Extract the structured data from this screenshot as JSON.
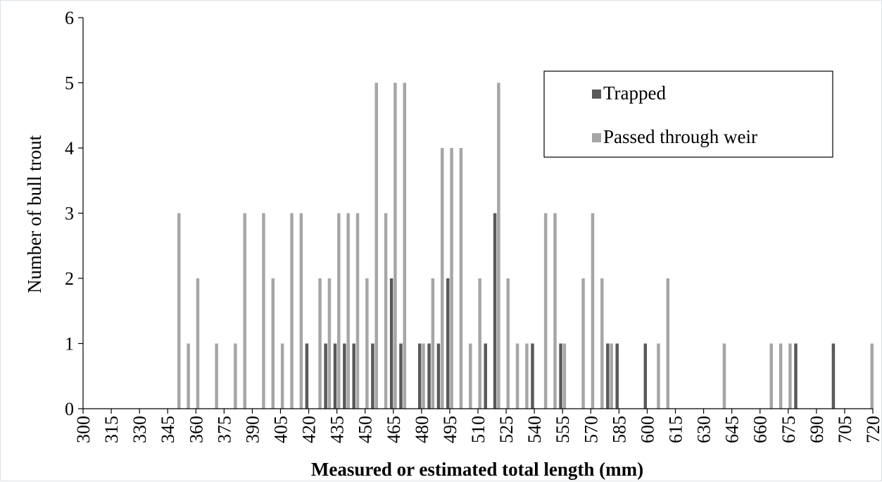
{
  "chart_data": {
    "type": "bar",
    "xlabel": "Measured or estimated total length (mm)",
    "ylabel": "Number of bull trout",
    "ylim": [
      0,
      6
    ],
    "yticks": [
      0,
      1,
      2,
      3,
      4,
      5,
      6
    ],
    "xlim": [
      300,
      720
    ],
    "xticks": [
      300,
      315,
      330,
      345,
      360,
      375,
      390,
      405,
      420,
      435,
      450,
      465,
      480,
      495,
      510,
      525,
      540,
      555,
      570,
      585,
      600,
      615,
      630,
      645,
      660,
      675,
      690,
      705,
      720
    ],
    "legend_placement": "top-right",
    "grid": false,
    "series": [
      {
        "name": "Trapped",
        "color": "#595959",
        "points": [
          {
            "x": 420,
            "y": 1
          },
          {
            "x": 430,
            "y": 1
          },
          {
            "x": 435,
            "y": 1
          },
          {
            "x": 440,
            "y": 1
          },
          {
            "x": 445,
            "y": 1
          },
          {
            "x": 455,
            "y": 1
          },
          {
            "x": 465,
            "y": 2
          },
          {
            "x": 470,
            "y": 1
          },
          {
            "x": 480,
            "y": 1
          },
          {
            "x": 485,
            "y": 1
          },
          {
            "x": 490,
            "y": 1
          },
          {
            "x": 495,
            "y": 2
          },
          {
            "x": 515,
            "y": 1
          },
          {
            "x": 520,
            "y": 3
          },
          {
            "x": 540,
            "y": 1
          },
          {
            "x": 555,
            "y": 1
          },
          {
            "x": 580,
            "y": 1
          },
          {
            "x": 585,
            "y": 1
          },
          {
            "x": 600,
            "y": 1
          },
          {
            "x": 680,
            "y": 1
          },
          {
            "x": 700,
            "y": 1
          }
        ]
      },
      {
        "name": "Passed through weir",
        "color": "#a6a6a6",
        "points": [
          {
            "x": 350,
            "y": 3
          },
          {
            "x": 355,
            "y": 1
          },
          {
            "x": 360,
            "y": 2
          },
          {
            "x": 370,
            "y": 1
          },
          {
            "x": 380,
            "y": 1
          },
          {
            "x": 385,
            "y": 3
          },
          {
            "x": 395,
            "y": 3
          },
          {
            "x": 400,
            "y": 2
          },
          {
            "x": 405,
            "y": 1
          },
          {
            "x": 410,
            "y": 3
          },
          {
            "x": 415,
            "y": 3
          },
          {
            "x": 425,
            "y": 2
          },
          {
            "x": 430,
            "y": 2
          },
          {
            "x": 435,
            "y": 3
          },
          {
            "x": 440,
            "y": 3
          },
          {
            "x": 445,
            "y": 3
          },
          {
            "x": 450,
            "y": 2
          },
          {
            "x": 455,
            "y": 5
          },
          {
            "x": 460,
            "y": 3
          },
          {
            "x": 465,
            "y": 5
          },
          {
            "x": 470,
            "y": 5
          },
          {
            "x": 480,
            "y": 1
          },
          {
            "x": 485,
            "y": 2
          },
          {
            "x": 490,
            "y": 4
          },
          {
            "x": 495,
            "y": 4
          },
          {
            "x": 500,
            "y": 4
          },
          {
            "x": 505,
            "y": 1
          },
          {
            "x": 510,
            "y": 2
          },
          {
            "x": 520,
            "y": 5
          },
          {
            "x": 525,
            "y": 2
          },
          {
            "x": 530,
            "y": 1
          },
          {
            "x": 535,
            "y": 1
          },
          {
            "x": 545,
            "y": 3
          },
          {
            "x": 550,
            "y": 3
          },
          {
            "x": 555,
            "y": 1
          },
          {
            "x": 565,
            "y": 2
          },
          {
            "x": 570,
            "y": 3
          },
          {
            "x": 575,
            "y": 2
          },
          {
            "x": 580,
            "y": 1
          },
          {
            "x": 605,
            "y": 1
          },
          {
            "x": 610,
            "y": 2
          },
          {
            "x": 640,
            "y": 1
          },
          {
            "x": 665,
            "y": 1
          },
          {
            "x": 670,
            "y": 1
          },
          {
            "x": 675,
            "y": 1
          },
          {
            "x": 720,
            "y": 1
          }
        ]
      }
    ]
  }
}
